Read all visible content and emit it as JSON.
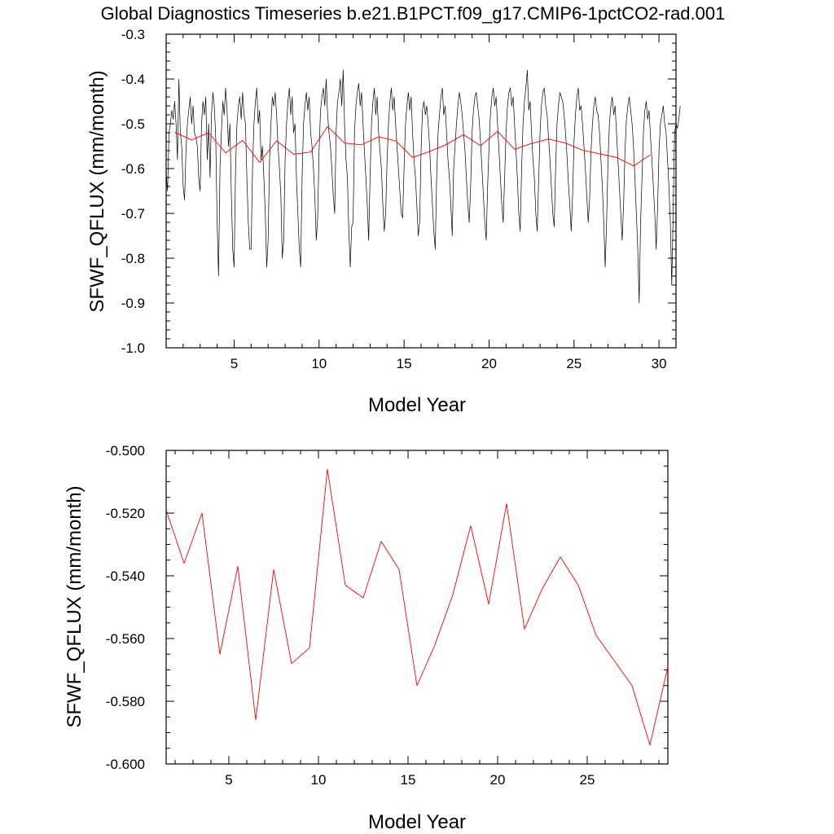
{
  "title": "Global Diagnostics Timeseries b.e21.B1PCT.f09_g17.CMIP6-1pctCO2-rad.001",
  "chart_data": [
    {
      "type": "line",
      "xlabel": "Model Year",
      "ylabel": "SFWF_QFLUX (mm/month)",
      "xlim": [
        1,
        31
      ],
      "ylim": [
        -1.0,
        -0.3
      ],
      "x_ticks": [
        "5",
        "10",
        "15",
        "20",
        "25",
        "30"
      ],
      "y_ticks": [
        "-1.0",
        "-0.9",
        "-0.8",
        "-0.7",
        "-0.6",
        "-0.5",
        "-0.4",
        "-0.3"
      ],
      "grid": false,
      "series": [
        {
          "color": "#000000",
          "x_start": 1.0,
          "x_step": 0.0833333,
          "values": [
            -0.61,
            -0.65,
            -0.52,
            -0.5,
            -0.47,
            -0.49,
            -0.45,
            -0.5,
            -0.58,
            -0.4,
            -0.52,
            -0.55,
            -0.64,
            -0.67,
            -0.56,
            -0.5,
            -0.47,
            -0.44,
            -0.5,
            -0.46,
            -0.52,
            -0.53,
            -0.55,
            -0.62,
            -0.65,
            -0.5,
            -0.45,
            -0.48,
            -0.44,
            -0.58,
            -0.5,
            -0.62,
            -0.48,
            -0.43,
            -0.46,
            -0.53,
            -0.72,
            -0.84,
            -0.6,
            -0.52,
            -0.45,
            -0.48,
            -0.42,
            -0.47,
            -0.55,
            -0.5,
            -0.65,
            -0.78,
            -0.82,
            -0.6,
            -0.5,
            -0.46,
            -0.44,
            -0.49,
            -0.43,
            -0.48,
            -0.5,
            -0.62,
            -0.72,
            -0.78,
            -0.78,
            -0.6,
            -0.5,
            -0.45,
            -0.42,
            -0.5,
            -0.47,
            -0.58,
            -0.55,
            -0.62,
            -0.7,
            -0.82,
            -0.76,
            -0.58,
            -0.5,
            -0.44,
            -0.46,
            -0.43,
            -0.48,
            -0.55,
            -0.6,
            -0.66,
            -0.8,
            -0.76,
            -0.58,
            -0.5,
            -0.45,
            -0.42,
            -0.48,
            -0.44,
            -0.52,
            -0.5,
            -0.62,
            -0.7,
            -0.78,
            -0.82,
            -0.62,
            -0.5,
            -0.46,
            -0.43,
            -0.47,
            -0.44,
            -0.52,
            -0.55,
            -0.6,
            -0.66,
            -0.76,
            -0.71,
            -0.56,
            -0.47,
            -0.44,
            -0.42,
            -0.46,
            -0.4,
            -0.48,
            -0.52,
            -0.55,
            -0.6,
            -0.66,
            -0.7,
            -0.52,
            -0.45,
            -0.43,
            -0.4,
            -0.46,
            -0.38,
            -0.5,
            -0.58,
            -0.62,
            -0.74,
            -0.82,
            -0.73,
            -0.72,
            -0.52,
            -0.46,
            -0.43,
            -0.41,
            -0.46,
            -0.43,
            -0.5,
            -0.56,
            -0.62,
            -0.68,
            -0.76,
            -0.62,
            -0.5,
            -0.45,
            -0.42,
            -0.48,
            -0.44,
            -0.52,
            -0.56,
            -0.6,
            -0.68,
            -0.74,
            -0.7,
            -0.58,
            -0.5,
            -0.45,
            -0.42,
            -0.47,
            -0.44,
            -0.5,
            -0.55,
            -0.6,
            -0.65,
            -0.7,
            -0.71,
            -0.6,
            -0.5,
            -0.46,
            -0.43,
            -0.47,
            -0.44,
            -0.52,
            -0.58,
            -0.62,
            -0.68,
            -0.75,
            -0.72,
            -0.56,
            -0.47,
            -0.45,
            -0.48,
            -0.46,
            -0.5,
            -0.55,
            -0.62,
            -0.68,
            -0.74,
            -0.78,
            -0.62,
            -0.52,
            -0.48,
            -0.44,
            -0.42,
            -0.48,
            -0.46,
            -0.52,
            -0.58,
            -0.62,
            -0.68,
            -0.75,
            -0.6,
            -0.55,
            -0.5,
            -0.46,
            -0.43,
            -0.45,
            -0.48,
            -0.52,
            -0.56,
            -0.62,
            -0.68,
            -0.72,
            -0.64,
            -0.52,
            -0.47,
            -0.44,
            -0.43,
            -0.46,
            -0.49,
            -0.54,
            -0.6,
            -0.66,
            -0.72,
            -0.76,
            -0.64,
            -0.55,
            -0.48,
            -0.44,
            -0.42,
            -0.46,
            -0.44,
            -0.5,
            -0.56,
            -0.62,
            -0.68,
            -0.72,
            -0.62,
            -0.52,
            -0.46,
            -0.43,
            -0.42,
            -0.46,
            -0.44,
            -0.5,
            -0.56,
            -0.62,
            -0.7,
            -0.74,
            -0.6,
            -0.5,
            -0.45,
            -0.42,
            -0.38,
            -0.47,
            -0.45,
            -0.52,
            -0.58,
            -0.62,
            -0.7,
            -0.74,
            -0.63,
            -0.52,
            -0.46,
            -0.43,
            -0.42,
            -0.46,
            -0.48,
            -0.53,
            -0.58,
            -0.64,
            -0.7,
            -0.73,
            -0.6,
            -0.5,
            -0.46,
            -0.43,
            -0.44,
            -0.45,
            -0.48,
            -0.52,
            -0.57,
            -0.63,
            -0.68,
            -0.74,
            -0.66,
            -0.54,
            -0.48,
            -0.44,
            -0.42,
            -0.47,
            -0.46,
            -0.5,
            -0.55,
            -0.6,
            -0.66,
            -0.72,
            -0.67,
            -0.56,
            -0.5,
            -0.46,
            -0.44,
            -0.47,
            -0.48,
            -0.52,
            -0.58,
            -0.64,
            -0.72,
            -0.82,
            -0.72,
            -0.58,
            -0.5,
            -0.46,
            -0.44,
            -0.48,
            -0.46,
            -0.52,
            -0.58,
            -0.64,
            -0.7,
            -0.76,
            -0.68,
            -0.56,
            -0.49,
            -0.46,
            -0.44,
            -0.47,
            -0.5,
            -0.55,
            -0.62,
            -0.7,
            -0.78,
            -0.9,
            -0.72,
            -0.62,
            -0.52,
            -0.47,
            -0.45,
            -0.49,
            -0.47,
            -0.53,
            -0.58,
            -0.64,
            -0.7,
            -0.78,
            -0.69,
            -0.56,
            -0.5,
            -0.48,
            -0.46,
            -0.5,
            -0.52,
            -0.58,
            -0.64,
            -0.72,
            -0.86,
            -0.7,
            -0.52,
            -0.5,
            -0.51,
            -0.49,
            -0.46
          ]
        },
        {
          "color": "#ff0000",
          "x": [
            1.5,
            2.5,
            3.5,
            4.5,
            5.5,
            6.5,
            7.5,
            8.5,
            9.5,
            10.5,
            11.5,
            12.5,
            13.5,
            14.5,
            15.5,
            16.5,
            17.5,
            18.5,
            19.5,
            20.5,
            21.5,
            22.5,
            23.5,
            24.5,
            25.5,
            26.5,
            27.5,
            28.5,
            29.5
          ],
          "values": [
            -0.519,
            -0.536,
            -0.52,
            -0.565,
            -0.537,
            -0.586,
            -0.538,
            -0.568,
            -0.563,
            -0.506,
            -0.543,
            -0.547,
            -0.529,
            -0.538,
            -0.575,
            -0.562,
            -0.546,
            -0.524,
            -0.549,
            -0.517,
            -0.557,
            -0.544,
            -0.534,
            -0.543,
            -0.559,
            -0.567,
            -0.575,
            -0.594,
            -0.569
          ]
        }
      ]
    },
    {
      "type": "line",
      "xlabel": "Model Year",
      "ylabel": "SFWF_QFLUX (mm/month)",
      "xlim": [
        1.5,
        29.5
      ],
      "ylim": [
        -0.6,
        -0.5
      ],
      "x_ticks": [
        "5",
        "10",
        "15",
        "20",
        "25"
      ],
      "y_ticks": [
        "-0.600",
        "-0.580",
        "-0.560",
        "-0.540",
        "-0.520",
        "-0.500"
      ],
      "grid": false,
      "series": [
        {
          "color": "#ff0000",
          "x": [
            1.5,
            2.5,
            3.5,
            4.5,
            5.5,
            6.5,
            7.5,
            8.5,
            9.5,
            10.5,
            11.5,
            12.5,
            13.5,
            14.5,
            15.5,
            16.5,
            17.5,
            18.5,
            19.5,
            20.5,
            21.5,
            22.5,
            23.5,
            24.5,
            25.5,
            26.5,
            27.5,
            28.5,
            29.5
          ],
          "values": [
            -0.519,
            -0.536,
            -0.52,
            -0.565,
            -0.537,
            -0.586,
            -0.538,
            -0.568,
            -0.563,
            -0.506,
            -0.543,
            -0.547,
            -0.529,
            -0.538,
            -0.575,
            -0.562,
            -0.546,
            -0.524,
            -0.549,
            -0.517,
            -0.557,
            -0.544,
            -0.534,
            -0.543,
            -0.559,
            -0.567,
            -0.575,
            -0.594,
            -0.569
          ]
        }
      ]
    }
  ]
}
